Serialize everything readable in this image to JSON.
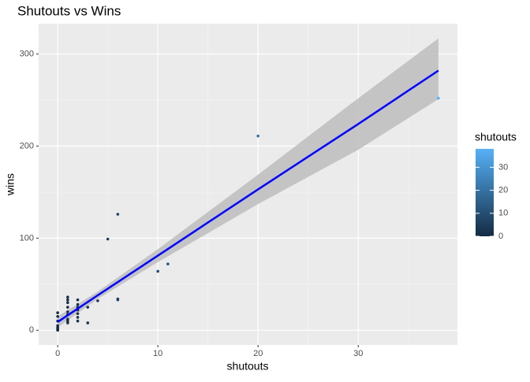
{
  "chart_data": {
    "type": "scatter",
    "title": "Shutouts vs Wins",
    "x_label": "shutouts",
    "y_label": "wins",
    "x": [
      0,
      0,
      0,
      0,
      0,
      0,
      0,
      0,
      1,
      1,
      1,
      1,
      1,
      1,
      1,
      1,
      1,
      2,
      2,
      2,
      2,
      2,
      2,
      2,
      3,
      3,
      4,
      5,
      6,
      6,
      6,
      10,
      11,
      20,
      38
    ],
    "y": [
      0,
      1,
      2,
      3,
      5,
      10,
      15,
      19,
      8,
      10,
      12,
      17,
      20,
      25,
      30,
      33,
      36,
      10,
      14,
      18,
      22,
      25,
      28,
      33,
      8,
      25,
      32,
      99,
      33,
      34,
      126,
      64,
      72,
      211,
      252
    ],
    "fit": {
      "color": "#0000ff",
      "band_color": "#bdbdbd",
      "x": [
        0,
        4,
        10,
        20,
        30,
        38
      ],
      "y": [
        9,
        38,
        81,
        153,
        224,
        282
      ],
      "lower": [
        3,
        34,
        74,
        137,
        196,
        251
      ],
      "upper": [
        15,
        42,
        88,
        169,
        252,
        317
      ]
    },
    "xlim": [
      -1.9,
      39.9
    ],
    "ylim": [
      -16,
      333
    ],
    "xticks": [
      0,
      10,
      20,
      30
    ],
    "yticks": [
      0,
      100,
      200,
      300
    ],
    "grid": true,
    "legend": {
      "title": "shutouts",
      "color_low": "#132b43",
      "color_high": "#56b1f7",
      "lim": [
        0,
        38
      ],
      "ticks": [
        0,
        10,
        20,
        30
      ]
    }
  }
}
